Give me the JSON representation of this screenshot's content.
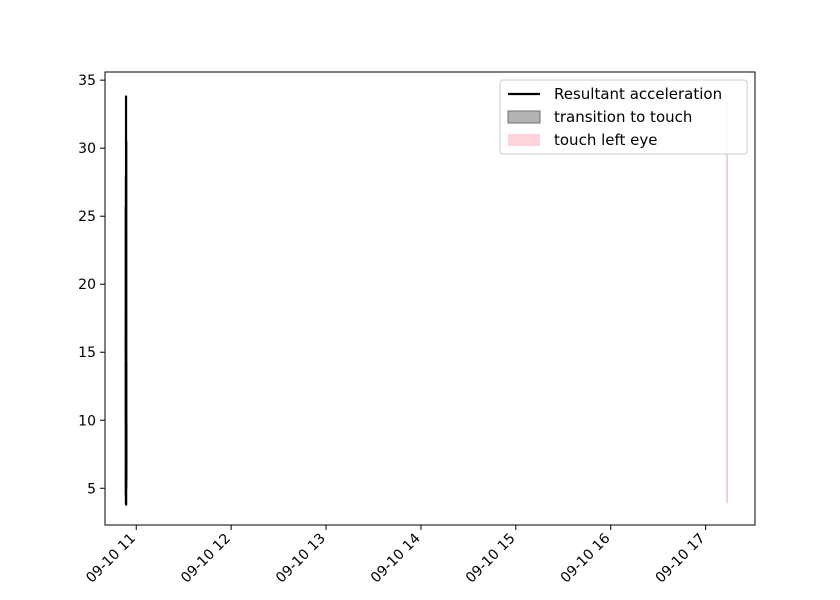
{
  "chart_data": {
    "type": "line",
    "title": "",
    "xlabel": "",
    "ylabel": "",
    "x_tick_labels": [
      "09-10 11",
      "09-10 12",
      "09-10 13",
      "09-10 14",
      "09-10 15",
      "09-10 16",
      "09-10 17"
    ],
    "x_ticks": [
      "2009-10-11",
      "2009-10-12",
      "2009-10-13",
      "2009-10-14",
      "2009-10-15",
      "2009-10-16",
      "2009-10-17"
    ],
    "xlim": [
      "2009-10-10 16:06",
      "2009-10-17 12:29"
    ],
    "ylim": [
      2.3,
      35.6
    ],
    "y_ticks": [
      5,
      10,
      15,
      20,
      25,
      30,
      35
    ],
    "grid": false,
    "legend_position": "top-right",
    "series": [
      {
        "name": "Resultant acceleration",
        "kind": "line",
        "color": "#000000",
        "x_start": "2009-10-10 21:20",
        "x_end": "2009-10-10 21:31",
        "y": [
          9.8,
          25.7,
          4.5,
          24.1,
          6.2,
          27.9,
          3.9,
          21.0,
          5.8,
          33.8,
          5.3,
          18.4,
          3.8,
          22.6,
          6.0,
          30.5,
          5.0,
          14.2,
          5.6,
          9.7
        ]
      },
      {
        "name": "transition to touch",
        "kind": "span",
        "color": "#808080",
        "x0": "2009-10-17 05:15",
        "x1": "2009-10-17 05:16",
        "y_range": [
          3.9,
          33.4
        ]
      },
      {
        "name": "touch left eye",
        "kind": "span",
        "color": "#ffc0cb",
        "x0": "2009-10-17 05:16",
        "x1": "2009-10-17 05:18",
        "y_range": [
          3.9,
          33.4
        ]
      }
    ]
  }
}
